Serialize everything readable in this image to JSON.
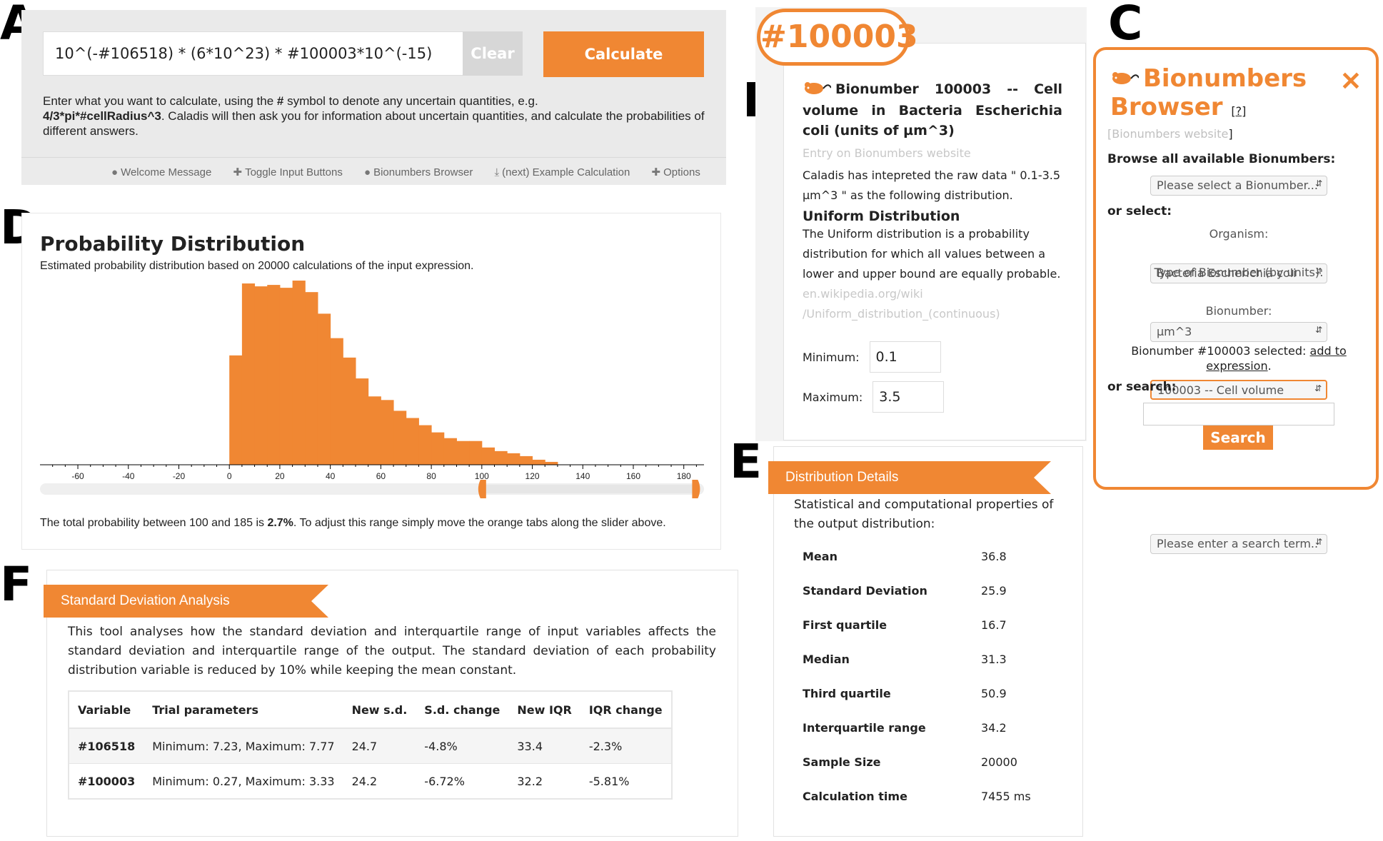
{
  "labels": {
    "a": "A",
    "b": "B",
    "c": "C",
    "d": "D",
    "e": "E",
    "f": "F"
  },
  "calculator": {
    "expression": "10^(-#106518) * (6*10^23) * #100003*10^(-15)",
    "clear_label": "Clear",
    "calculate_label": "Calculate",
    "instructions_1": "Enter what you want to calculate, using the ",
    "instructions_hash": "#",
    "instructions_2": " symbol to denote any uncertain quantities, e.g.",
    "instructions_example": "4/3*pi*#cellRadius^3",
    "instructions_3": ". Caladis will then ask you for information about uncertain quantities, and calculate the probabilities of different answers.",
    "toolbar": [
      {
        "icon": "speech-bubble-icon",
        "label": "Welcome Message"
      },
      {
        "icon": "plus-icon",
        "label": "Toggle Input Buttons"
      },
      {
        "icon": "mouse-icon",
        "label": "Bionumbers Browser"
      },
      {
        "icon": "download-icon",
        "label": "(next) Example Calculation"
      },
      {
        "icon": "plus-icon",
        "label": "Options"
      }
    ]
  },
  "variable": {
    "badge": "#100003",
    "title": "Bionumber 100003 -- Cell volume in Bacteria Escherichia coli (units of µm^3)",
    "entry_link": "Entry on Bionumbers website",
    "interpretation": "Caladis has intepreted the raw data \" 0.1-3.5 µm^3 \" as the following distribution.",
    "dist_name": "Uniform Distribution",
    "dist_desc": "The Uniform distribution is a probability distribution for which all values between a lower and upper bound are equally probable.",
    "wiki_link_1": "en.wikipedia.org/wiki",
    "wiki_link_2": "/Uniform_distribution_(continuous)",
    "min_label": "Minimum:",
    "min_value": "0.1",
    "max_label": "Maximum:",
    "max_value": "3.5"
  },
  "browser": {
    "title_1": "Bionumbers",
    "title_2": "Browser",
    "help": "[?]",
    "website_link": "Bionumbers website",
    "browse_all": "Browse all available Bionumbers:",
    "select_placeholder": "Please select a Bionumber...",
    "or_select": "or select:",
    "organism_label": "Organism:",
    "organism_value": "Bacteria Escherichia coli",
    "type_label": "Type of Bionumber (by units):",
    "type_value": "µm^3",
    "bionumber_label": "Bionumber:",
    "bionumber_value": "100003 -- Cell volume",
    "selected_text": "Bionumber #100003 selected: ",
    "add_link_1": "add to",
    "add_link_2": "expression",
    "or_search": "or search:",
    "search_value": "",
    "search_label": "Search",
    "search_results_placeholder": "Please enter a search term..",
    "accent": "#f08733"
  },
  "distribution": {
    "title": "Probability Distribution",
    "subtitle": "Estimated probability distribution based on 20000 calculations of the input expression.",
    "footer_1": "The total probability between 100 and 185 is ",
    "footer_bold": "2.7%",
    "footer_2": ". To adjust this range simply move the orange tabs along the slider above.",
    "slider_range": [
      100,
      185
    ]
  },
  "chart_data": {
    "type": "bar",
    "color": "#f08733",
    "x_ticks": [
      -60,
      -40,
      -20,
      0,
      20,
      40,
      60,
      80,
      100,
      120,
      140,
      160,
      180
    ],
    "xlim": [
      -75,
      188
    ],
    "bin_width": 5,
    "bin_starts": [
      0,
      5,
      10,
      15,
      20,
      25,
      30,
      35,
      40,
      45,
      50,
      55,
      60,
      65,
      70,
      75,
      80,
      85,
      90,
      95,
      100,
      105,
      110,
      115,
      120,
      125
    ],
    "values": [
      152,
      252,
      248,
      250,
      246,
      256,
      240,
      210,
      176,
      149,
      120,
      95,
      90,
      75,
      65,
      55,
      45,
      37,
      33,
      33,
      24,
      19,
      16,
      12,
      7,
      4
    ],
    "ylim": [
      0,
      260
    ]
  },
  "details": {
    "header": "Distribution Details",
    "desc": "Statistical and computational properties of the output distribution:",
    "rows": [
      {
        "k": "Mean",
        "v": "36.8"
      },
      {
        "k": "Standard Deviation",
        "v": "25.9"
      },
      {
        "k": "First quartile",
        "v": "16.7"
      },
      {
        "k": "Median",
        "v": "31.3"
      },
      {
        "k": "Third quartile",
        "v": "50.9"
      },
      {
        "k": "Interquartile range",
        "v": "34.2"
      },
      {
        "k": "Sample Size",
        "v": "20000"
      },
      {
        "k": "Calculation time",
        "v": "7455 ms"
      }
    ]
  },
  "sd_analysis": {
    "header": "Standard Deviation Analysis",
    "desc": "This tool analyses how the standard deviation and interquartile range of input variables affects the standard deviation and interquartile range of the output. The standard deviation of each probability distribution variable is reduced by 10% while keeping the mean constant.",
    "columns": [
      "Variable",
      "Trial parameters",
      "New s.d.",
      "S.d. change",
      "New IQR",
      "IQR change"
    ],
    "rows": [
      [
        "#106518",
        "Minimum: 7.23, Maximum: 7.77",
        "24.7",
        "-4.8%",
        "33.4",
        "-2.3%"
      ],
      [
        "#100003",
        "Minimum: 0.27, Maximum: 3.33",
        "24.2",
        "-6.72%",
        "32.2",
        "-5.81%"
      ]
    ]
  }
}
